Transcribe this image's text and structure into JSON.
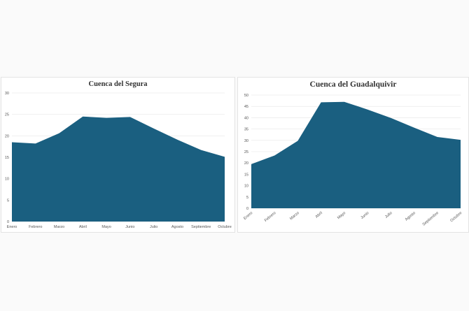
{
  "chart_data": [
    {
      "type": "area",
      "title": "Cuenca del Segura",
      "xlabel": "",
      "ylabel": "",
      "categories": [
        "Enero",
        "Febrero",
        "Marzo",
        "Abril",
        "Mayo",
        "Junio",
        "Julio",
        "Agosto",
        "Septiembre",
        "Octubre"
      ],
      "values": [
        18.5,
        18.2,
        20.6,
        24.5,
        24.2,
        24.4,
        21.7,
        19.1,
        16.7,
        15.1
      ],
      "ylim": [
        0,
        30
      ],
      "yticks": [
        0,
        5,
        10,
        15,
        20,
        25,
        30
      ],
      "grid": true,
      "legend": "none",
      "color": "#1a5f80"
    },
    {
      "type": "area",
      "title": "Cuenca del Guadalquivir",
      "xlabel": "",
      "ylabel": "",
      "categories": [
        "Enero",
        "Febrero",
        "Marzo",
        "Abril",
        "Mayo",
        "Junio",
        "Julio",
        "Agosto",
        "Septiembre",
        "Octubre"
      ],
      "values": [
        19.5,
        23.3,
        29.8,
        46.8,
        47.0,
        43.6,
        39.9,
        35.6,
        31.5,
        30.2
      ],
      "ylim": [
        0,
        50
      ],
      "yticks": [
        0,
        5,
        10,
        15,
        20,
        25,
        30,
        35,
        40,
        45,
        50
      ],
      "grid": true,
      "legend": "none",
      "color": "#1a5f80",
      "xtick_rotation": -40
    }
  ]
}
